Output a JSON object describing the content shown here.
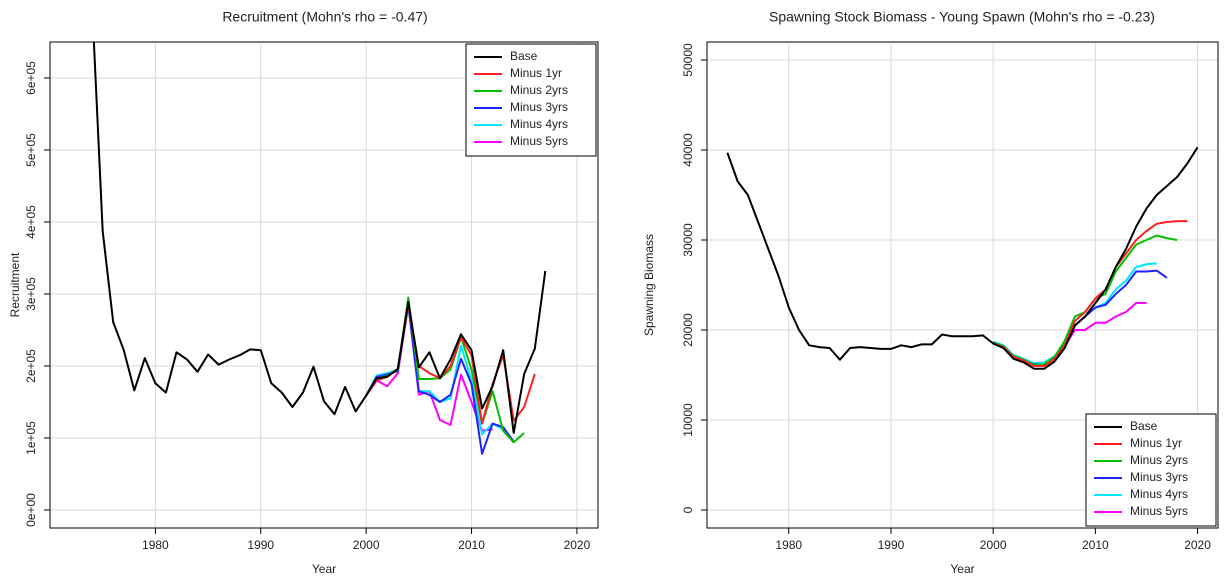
{
  "chart_data": [
    {
      "type": "line",
      "title": "Recruitment (Mohn's rho = -0.47)",
      "x_label": "Year",
      "y_label": "Recruitment",
      "x": [
        1974,
        1975,
        1976,
        1977,
        1978,
        1979,
        1980,
        1981,
        1982,
        1983,
        1984,
        1985,
        1986,
        1987,
        1988,
        1989,
        1990,
        1991,
        1992,
        1993,
        1994,
        1995,
        1996,
        1997,
        1998,
        1999,
        2000,
        2001,
        2002,
        2003,
        2004,
        2005,
        2006,
        2007,
        2008,
        2009,
        2010,
        2011,
        2012,
        2013,
        2014,
        2015,
        2016,
        2017
      ],
      "xlim": [
        1970,
        2022
      ],
      "xticks": [
        1980,
        1990,
        2000,
        2010,
        2020
      ],
      "ylim": [
        -25000,
        650000
      ],
      "yticks": [
        {
          "value": 0,
          "label": "0e+00"
        },
        {
          "value": 100000,
          "label": "1e+05"
        },
        {
          "value": 200000,
          "label": "2e+05"
        },
        {
          "value": 300000,
          "label": "3e+05"
        },
        {
          "value": 400000,
          "label": "4e+05"
        },
        {
          "value": 500000,
          "label": "5e+05"
        },
        {
          "value": 600000,
          "label": "6e+05"
        }
      ],
      "grid": true,
      "legend": "topright",
      "series": [
        {
          "name": "Minus 5yrs",
          "color": "#ff00ff",
          "values": [
            null,
            null,
            null,
            null,
            null,
            null,
            null,
            null,
            null,
            null,
            null,
            null,
            null,
            null,
            null,
            null,
            null,
            null,
            null,
            null,
            null,
            null,
            null,
            null,
            null,
            null,
            159000,
            180000,
            172000,
            190000,
            285000,
            160000,
            165000,
            125000,
            118000,
            188000,
            150000,
            110000,
            112000,
            null,
            null,
            null,
            null,
            null
          ]
        },
        {
          "name": "Minus 4yrs",
          "color": "#00e5ff",
          "values": [
            null,
            null,
            null,
            null,
            null,
            null,
            null,
            null,
            null,
            null,
            null,
            null,
            null,
            null,
            null,
            null,
            null,
            null,
            null,
            null,
            null,
            null,
            null,
            null,
            null,
            null,
            159000,
            187000,
            190000,
            195000,
            285000,
            165000,
            165000,
            150000,
            155000,
            228000,
            180000,
            105000,
            120000,
            112000,
            null,
            null,
            null,
            null
          ]
        },
        {
          "name": "Minus 3yrs",
          "color": "#2222ff",
          "values": [
            null,
            null,
            null,
            null,
            null,
            null,
            null,
            null,
            null,
            null,
            null,
            null,
            null,
            null,
            null,
            null,
            null,
            null,
            null,
            null,
            null,
            null,
            null,
            null,
            null,
            null,
            159000,
            185000,
            188000,
            193000,
            285000,
            165000,
            160000,
            150000,
            160000,
            210000,
            175000,
            78000,
            120000,
            115000,
            95000,
            null,
            null,
            null
          ]
        },
        {
          "name": "Minus 2yrs",
          "color": "#00c000",
          "values": [
            null,
            null,
            null,
            null,
            null,
            null,
            null,
            null,
            null,
            null,
            null,
            null,
            null,
            null,
            null,
            null,
            null,
            null,
            null,
            null,
            null,
            null,
            null,
            null,
            null,
            null,
            159000,
            183000,
            186000,
            195000,
            295000,
            182000,
            182000,
            183000,
            195000,
            240000,
            195000,
            120000,
            165000,
            110000,
            94000,
            107000,
            null,
            null
          ]
        },
        {
          "name": "Minus 1yr",
          "color": "#ff2020",
          "values": [
            null,
            null,
            null,
            null,
            null,
            null,
            null,
            null,
            null,
            null,
            null,
            null,
            null,
            null,
            null,
            null,
            null,
            null,
            null,
            null,
            null,
            null,
            null,
            null,
            null,
            null,
            159000,
            180000,
            185000,
            196000,
            285000,
            200000,
            190000,
            183000,
            200000,
            240000,
            215000,
            120000,
            175000,
            215000,
            124000,
            143000,
            189000,
            null
          ]
        },
        {
          "name": "Base",
          "color": "#000000",
          "values": [
            700000,
            387000,
            261000,
            222000,
            166000,
            211000,
            176000,
            163000,
            219000,
            209000,
            192000,
            216000,
            202000,
            209000,
            215000,
            223000,
            222000,
            176000,
            163000,
            143000,
            163000,
            199000,
            151000,
            133000,
            171000,
            137000,
            159000,
            183000,
            185000,
            196000,
            289000,
            198000,
            219000,
            183000,
            209000,
            244000,
            222000,
            141000,
            172000,
            222000,
            107000,
            189000,
            224000,
            332000
          ]
        }
      ]
    },
    {
      "type": "line",
      "title": "Spawning Stock Biomass - Young Spawn (Mohn's rho = -0.23)",
      "x_label": "Year",
      "y_label": "Spawning Biomass",
      "x": [
        1974,
        1975,
        1976,
        1977,
        1978,
        1979,
        1980,
        1981,
        1982,
        1983,
        1984,
        1985,
        1986,
        1987,
        1988,
        1989,
        1990,
        1991,
        1992,
        1993,
        1994,
        1995,
        1996,
        1997,
        1998,
        1999,
        2000,
        2001,
        2002,
        2003,
        2004,
        2005,
        2006,
        2007,
        2008,
        2009,
        2010,
        2011,
        2012,
        2013,
        2014,
        2015,
        2016,
        2017,
        2018,
        2019,
        2020
      ],
      "xlim": [
        1972,
        2022
      ],
      "xticks": [
        1980,
        1990,
        2000,
        2010,
        2020
      ],
      "ylim": [
        -2000,
        52000
      ],
      "yticks": [
        0,
        10000,
        20000,
        30000,
        40000,
        50000
      ],
      "grid": true,
      "legend": "bottomright",
      "series": [
        {
          "name": "Minus 5yrs",
          "color": "#ff00ff",
          "values": [
            null,
            null,
            null,
            null,
            null,
            null,
            null,
            null,
            null,
            null,
            null,
            null,
            null,
            null,
            null,
            null,
            null,
            null,
            null,
            null,
            null,
            null,
            null,
            null,
            null,
            null,
            18500,
            18100,
            17000,
            16700,
            16200,
            16300,
            17000,
            18200,
            20000,
            20000,
            20800,
            20800,
            21500,
            22000,
            23000,
            23000,
            null,
            null,
            null,
            null,
            null
          ]
        },
        {
          "name": "Minus 4yrs",
          "color": "#00e5ff",
          "values": [
            null,
            null,
            null,
            null,
            null,
            null,
            null,
            null,
            null,
            null,
            null,
            null,
            null,
            null,
            null,
            null,
            null,
            null,
            null,
            null,
            null,
            null,
            null,
            null,
            null,
            null,
            18700,
            18300,
            17200,
            16800,
            16300,
            16400,
            17100,
            18500,
            20500,
            21500,
            22500,
            23000,
            24500,
            25500,
            27000,
            27300,
            27400,
            null,
            null,
            null,
            null
          ]
        },
        {
          "name": "Minus 3yrs",
          "color": "#2222ff",
          "values": [
            null,
            null,
            null,
            null,
            null,
            null,
            null,
            null,
            null,
            null,
            null,
            null,
            null,
            null,
            null,
            null,
            null,
            null,
            null,
            null,
            null,
            null,
            null,
            null,
            null,
            null,
            18500,
            18000,
            17000,
            16500,
            16200,
            16100,
            16900,
            18300,
            20500,
            21500,
            22500,
            22800,
            24000,
            25000,
            26500,
            26500,
            26600,
            25800,
            null,
            null,
            null
          ]
        },
        {
          "name": "Minus 2yrs",
          "color": "#00c000",
          "values": [
            null,
            null,
            null,
            null,
            null,
            null,
            null,
            null,
            null,
            null,
            null,
            null,
            null,
            null,
            null,
            null,
            null,
            null,
            null,
            null,
            null,
            null,
            null,
            null,
            null,
            null,
            18600,
            18200,
            17100,
            16700,
            16100,
            16200,
            17000,
            18800,
            21500,
            22000,
            23500,
            24000,
            26500,
            28000,
            29500,
            30000,
            30500,
            30200,
            30000,
            null,
            null
          ]
        },
        {
          "name": "Minus 1yr",
          "color": "#ff2020",
          "values": [
            null,
            null,
            null,
            null,
            null,
            null,
            null,
            null,
            null,
            null,
            null,
            null,
            null,
            null,
            null,
            null,
            null,
            null,
            null,
            null,
            null,
            null,
            null,
            null,
            null,
            null,
            18500,
            18100,
            17000,
            16600,
            16000,
            16000,
            16800,
            18300,
            21000,
            22000,
            23500,
            24500,
            27000,
            28500,
            30000,
            31000,
            31800,
            32000,
            32100,
            32100,
            null
          ]
        },
        {
          "name": "Base",
          "color": "#000000",
          "values": [
            39700,
            36500,
            35000,
            32000,
            29000,
            26000,
            22500,
            20000,
            18300,
            18100,
            18000,
            16700,
            18000,
            18100,
            18000,
            17900,
            17900,
            18300,
            18100,
            18400,
            18400,
            19500,
            19300,
            19300,
            19300,
            19400,
            18500,
            18000,
            16800,
            16400,
            15700,
            15700,
            16500,
            18000,
            20500,
            21500,
            23000,
            24500,
            27000,
            29000,
            31500,
            33500,
            35000,
            36000,
            37000,
            38500,
            40300
          ]
        }
      ]
    }
  ]
}
